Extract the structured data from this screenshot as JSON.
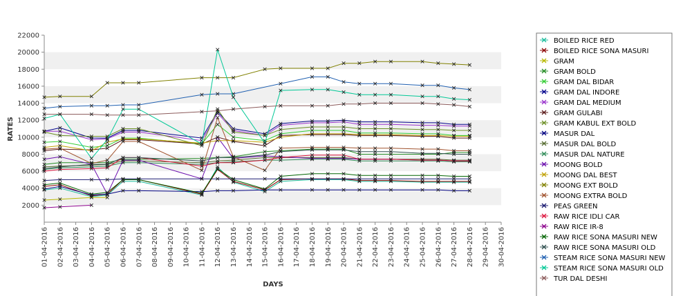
{
  "chart_data": {
    "type": "line",
    "xlabel": "DAYS",
    "ylabel": "RATES",
    "ylim": [
      0,
      22000
    ],
    "yticks": [
      2000,
      4000,
      6000,
      8000,
      10000,
      12000,
      14000,
      16000,
      18000,
      20000,
      22000
    ],
    "grid": "alternating horizontal bands",
    "legend_position": "right",
    "x": [
      "01-04-2016",
      "02-04-2016",
      "03-04-2016",
      "04-04-2016",
      "05-04-2016",
      "06-04-2016",
      "07-04-2016",
      "08-04-2016",
      "09-04-2016",
      "10-04-2016",
      "11-04-2016",
      "12-04-2016",
      "13-04-2016",
      "14-04-2016",
      "15-04-2016",
      "16-04-2016",
      "17-04-2016",
      "18-04-2016",
      "19-04-2016",
      "20-04-2016",
      "21-04-2016",
      "22-04-2016",
      "23-04-2016",
      "24-04-2016",
      "25-04-2016",
      "26-04-2016",
      "27-04-2016",
      "28-04-2016",
      "29-04-2016",
      "30-04-2016"
    ],
    "series": [
      {
        "name": "BOILED RICE RED",
        "color": "#1abc9c",
        "values": [
          3800,
          4000,
          null,
          3000,
          3200,
          4800,
          4800,
          null,
          null,
          null,
          3200,
          6500,
          4700,
          null,
          3600,
          4800,
          null,
          5000,
          5000,
          5000,
          4800,
          4800,
          4800,
          null,
          4700,
          4700,
          4700,
          4700,
          null,
          null
        ]
      },
      {
        "name": "BOILED RICE SONA MASURI",
        "color": "#8b0000",
        "values": [
          4200,
          4400,
          null,
          3100,
          3300,
          5000,
          5000,
          null,
          null,
          null,
          3300,
          6200,
          4800,
          null,
          3800,
          5000,
          null,
          5100,
          5100,
          5100,
          4900,
          4900,
          4900,
          null,
          4800,
          4800,
          4800,
          4800,
          null,
          null
        ]
      },
      {
        "name": "GRAM",
        "color": "#b8b800",
        "values": [
          2600,
          2700,
          null,
          2900,
          2900,
          null,
          null,
          null,
          null,
          null,
          null,
          null,
          null,
          null,
          null,
          null,
          null,
          null,
          null,
          null,
          null,
          null,
          null,
          null,
          null,
          null,
          null,
          null,
          null,
          null
        ]
      },
      {
        "name": "GRAM BOLD",
        "color": "#228b22",
        "values": [
          6800,
          7000,
          null,
          7000,
          7000,
          7400,
          7400,
          null,
          null,
          null,
          7500,
          7600,
          7700,
          null,
          8300,
          8400,
          null,
          8600,
          8600,
          8600,
          8000,
          8000,
          8000,
          null,
          8000,
          8000,
          8200,
          8200,
          null,
          null
        ]
      },
      {
        "name": "GRAM DAL BIDAR",
        "color": "#32cd32",
        "values": [
          9400,
          9500,
          null,
          8800,
          9000,
          9900,
          9900,
          null,
          null,
          null,
          9200,
          11500,
          10000,
          null,
          9600,
          10400,
          null,
          10800,
          10800,
          10800,
          10500,
          10500,
          10500,
          null,
          10400,
          10400,
          10200,
          10200,
          null,
          null
        ]
      },
      {
        "name": "GRAM DAL INDORE",
        "color": "#00008b",
        "values": [
          10700,
          11100,
          null,
          9900,
          9900,
          10800,
          10800,
          null,
          null,
          null,
          9900,
          13000,
          11000,
          null,
          10400,
          11600,
          null,
          11900,
          11900,
          12000,
          11800,
          11800,
          11800,
          null,
          11700,
          11700,
          11500,
          11500,
          null,
          null
        ]
      },
      {
        "name": "GRAM DAL MEDIUM",
        "color": "#9932cc",
        "values": [
          10700,
          10700,
          null,
          9700,
          9800,
          10600,
          10600,
          null,
          null,
          null,
          9600,
          12800,
          10800,
          null,
          10200,
          11400,
          null,
          11700,
          11700,
          11800,
          11500,
          11500,
          11500,
          null,
          11400,
          11400,
          11300,
          11300,
          null,
          null
        ]
      },
      {
        "name": "GRAM GULABI",
        "color": "#5b1a1a",
        "values": [
          8400,
          8600,
          null,
          8500,
          8700,
          9700,
          9700,
          null,
          null,
          null,
          9200,
          10000,
          9500,
          null,
          9000,
          10200,
          null,
          10300,
          10300,
          10300,
          10200,
          10200,
          10200,
          null,
          10100,
          10100,
          9900,
          9900,
          null,
          null
        ]
      },
      {
        "name": "GRAM KABUL EXT BOLD",
        "color": "#6b8e23",
        "values": [
          10600,
          10200,
          null,
          10100,
          10100,
          11000,
          11000,
          null,
          null,
          null,
          9000,
          13300,
          10600,
          null,
          10200,
          10900,
          null,
          11200,
          11200,
          11200,
          11000,
          11000,
          11000,
          null,
          10900,
          10900,
          10800,
          10800,
          null,
          null
        ]
      },
      {
        "name": "MASUR DAL",
        "color": "#000080",
        "values": [
          3900,
          4200,
          null,
          3200,
          3300,
          3700,
          3700,
          null,
          null,
          null,
          3600,
          3700,
          3700,
          null,
          3800,
          3800,
          null,
          3800,
          3800,
          3800,
          3800,
          3800,
          3800,
          null,
          3800,
          3800,
          3700,
          3700,
          null,
          null
        ]
      },
      {
        "name": "MASUR DAL BOLD",
        "color": "#556b2f",
        "values": [
          6500,
          6600,
          null,
          6700,
          6800,
          7200,
          7200,
          null,
          null,
          null,
          7000,
          7200,
          7300,
          null,
          7600,
          7600,
          null,
          7600,
          7600,
          7600,
          7400,
          7400,
          7400,
          null,
          7400,
          7400,
          7300,
          7300,
          null,
          null
        ]
      },
      {
        "name": "MASUR DAL NATURE",
        "color": "#2e8b57",
        "values": [
          6200,
          6400,
          null,
          6500,
          6600,
          7000,
          7000,
          null,
          null,
          null,
          6800,
          7000,
          7100,
          null,
          7300,
          7300,
          null,
          7400,
          7400,
          7400,
          7200,
          7200,
          7200,
          null,
          7200,
          7200,
          7100,
          7100,
          null,
          null
        ]
      },
      {
        "name": "MOONG BOLD",
        "color": "#6a0dad",
        "values": [
          7400,
          7700,
          null,
          6800,
          3300,
          7300,
          7300,
          null,
          null,
          null,
          5100,
          10000,
          7500,
          null,
          7800,
          7700,
          null,
          7500,
          7500,
          7500,
          7400,
          7400,
          7400,
          null,
          7300,
          7300,
          7200,
          7200,
          null,
          null
        ]
      },
      {
        "name": "MOONG DAL BEST",
        "color": "#c0a000",
        "values": [
          8800,
          9000,
          null,
          8400,
          9400,
          9800,
          9800,
          null,
          null,
          null,
          9300,
          9600,
          9600,
          null,
          9400,
          10000,
          null,
          10400,
          10400,
          10400,
          10300,
          10300,
          10300,
          null,
          10200,
          10200,
          10100,
          10100,
          null,
          null
        ]
      },
      {
        "name": "MOONG EXT BOLD",
        "color": "#808000",
        "values": [
          14700,
          14800,
          null,
          14800,
          16400,
          16400,
          16400,
          null,
          null,
          null,
          17000,
          17000,
          17000,
          null,
          18000,
          18100,
          null,
          18100,
          18100,
          18700,
          18700,
          18900,
          18900,
          null,
          18900,
          18700,
          18600,
          18500,
          null,
          null
        ]
      },
      {
        "name": "MOONG EXTRA BOLD",
        "color": "#a0522d",
        "values": [
          8600,
          8700,
          null,
          6900,
          7300,
          9500,
          9500,
          null,
          null,
          null,
          6100,
          12300,
          7700,
          null,
          6100,
          8700,
          null,
          8800,
          8800,
          8800,
          8700,
          8700,
          8700,
          null,
          8600,
          8600,
          8400,
          8400,
          null,
          null
        ]
      },
      {
        "name": "PEAS GREEN",
        "color": "#191970",
        "values": [
          4900,
          5000,
          null,
          5000,
          5000,
          5100,
          5100,
          null,
          null,
          null,
          5100,
          5100,
          5100,
          null,
          5100,
          5100,
          null,
          5100,
          5100,
          5100,
          5100,
          5100,
          5100,
          null,
          5100,
          5100,
          5100,
          5100,
          null,
          null
        ]
      },
      {
        "name": "RAW RICE IDLI CAR",
        "color": "#dc143c",
        "values": [
          6000,
          6200,
          null,
          6300,
          6400,
          7600,
          7600,
          null,
          null,
          null,
          6600,
          7000,
          7000,
          null,
          7300,
          7600,
          null,
          7900,
          7900,
          7900,
          7400,
          7400,
          7400,
          null,
          7300,
          7300,
          7200,
          7200,
          null,
          null
        ]
      },
      {
        "name": "RAW RICE IR-8",
        "color": "#8b008b",
        "values": [
          1700,
          1800,
          null,
          2000,
          null,
          null,
          null,
          null,
          null,
          null,
          null,
          null,
          null,
          null,
          null,
          null,
          null,
          null,
          null,
          null,
          null,
          null,
          null,
          null,
          null,
          null,
          null,
          null,
          null,
          null
        ]
      },
      {
        "name": "RAW RICE SONA MASURI NEW",
        "color": "#006400",
        "values": [
          4400,
          4600,
          null,
          3300,
          3500,
          5000,
          5000,
          null,
          null,
          null,
          3400,
          6300,
          5000,
          null,
          3900,
          5400,
          null,
          5700,
          5700,
          5700,
          5500,
          5500,
          5500,
          null,
          5500,
          5500,
          5400,
          5400,
          null,
          null
        ]
      },
      {
        "name": "RAW RICE SONA MASURI OLD",
        "color": "#2f4f4f",
        "values": [
          6300,
          6500,
          null,
          6800,
          6800,
          7600,
          7600,
          null,
          null,
          null,
          7200,
          7600,
          7600,
          null,
          7900,
          8300,
          null,
          8500,
          8500,
          8500,
          8300,
          8300,
          8300,
          null,
          8100,
          8100,
          8000,
          8000,
          null,
          null
        ]
      },
      {
        "name": "STEAM RICE SONA MASURI NEW",
        "color": "#1f5fb0",
        "values": [
          13400,
          13600,
          null,
          13700,
          13700,
          13800,
          13800,
          null,
          null,
          null,
          15000,
          15100,
          15100,
          null,
          null,
          16300,
          null,
          17100,
          17100,
          16500,
          16300,
          16300,
          16300,
          null,
          16100,
          16100,
          15800,
          15600,
          null,
          null
        ]
      },
      {
        "name": "STEAM RICE SONA MASURI OLD",
        "color": "#00c896",
        "values": [
          12200,
          12700,
          null,
          7500,
          9700,
          13300,
          13300,
          null,
          null,
          null,
          9200,
          20300,
          14700,
          null,
          9300,
          15500,
          null,
          15600,
          15600,
          15300,
          15000,
          15000,
          15000,
          null,
          14800,
          14800,
          14500,
          14400,
          null,
          null
        ]
      },
      {
        "name": "TUR DAL DESHI",
        "color": "#8b5a5a",
        "values": [
          12700,
          12700,
          null,
          12700,
          12600,
          12600,
          12600,
          null,
          null,
          null,
          13000,
          13100,
          13300,
          null,
          13600,
          13700,
          null,
          13700,
          13700,
          13900,
          13900,
          14000,
          14000,
          null,
          14000,
          13900,
          13800,
          13600,
          null,
          null
        ]
      }
    ]
  }
}
